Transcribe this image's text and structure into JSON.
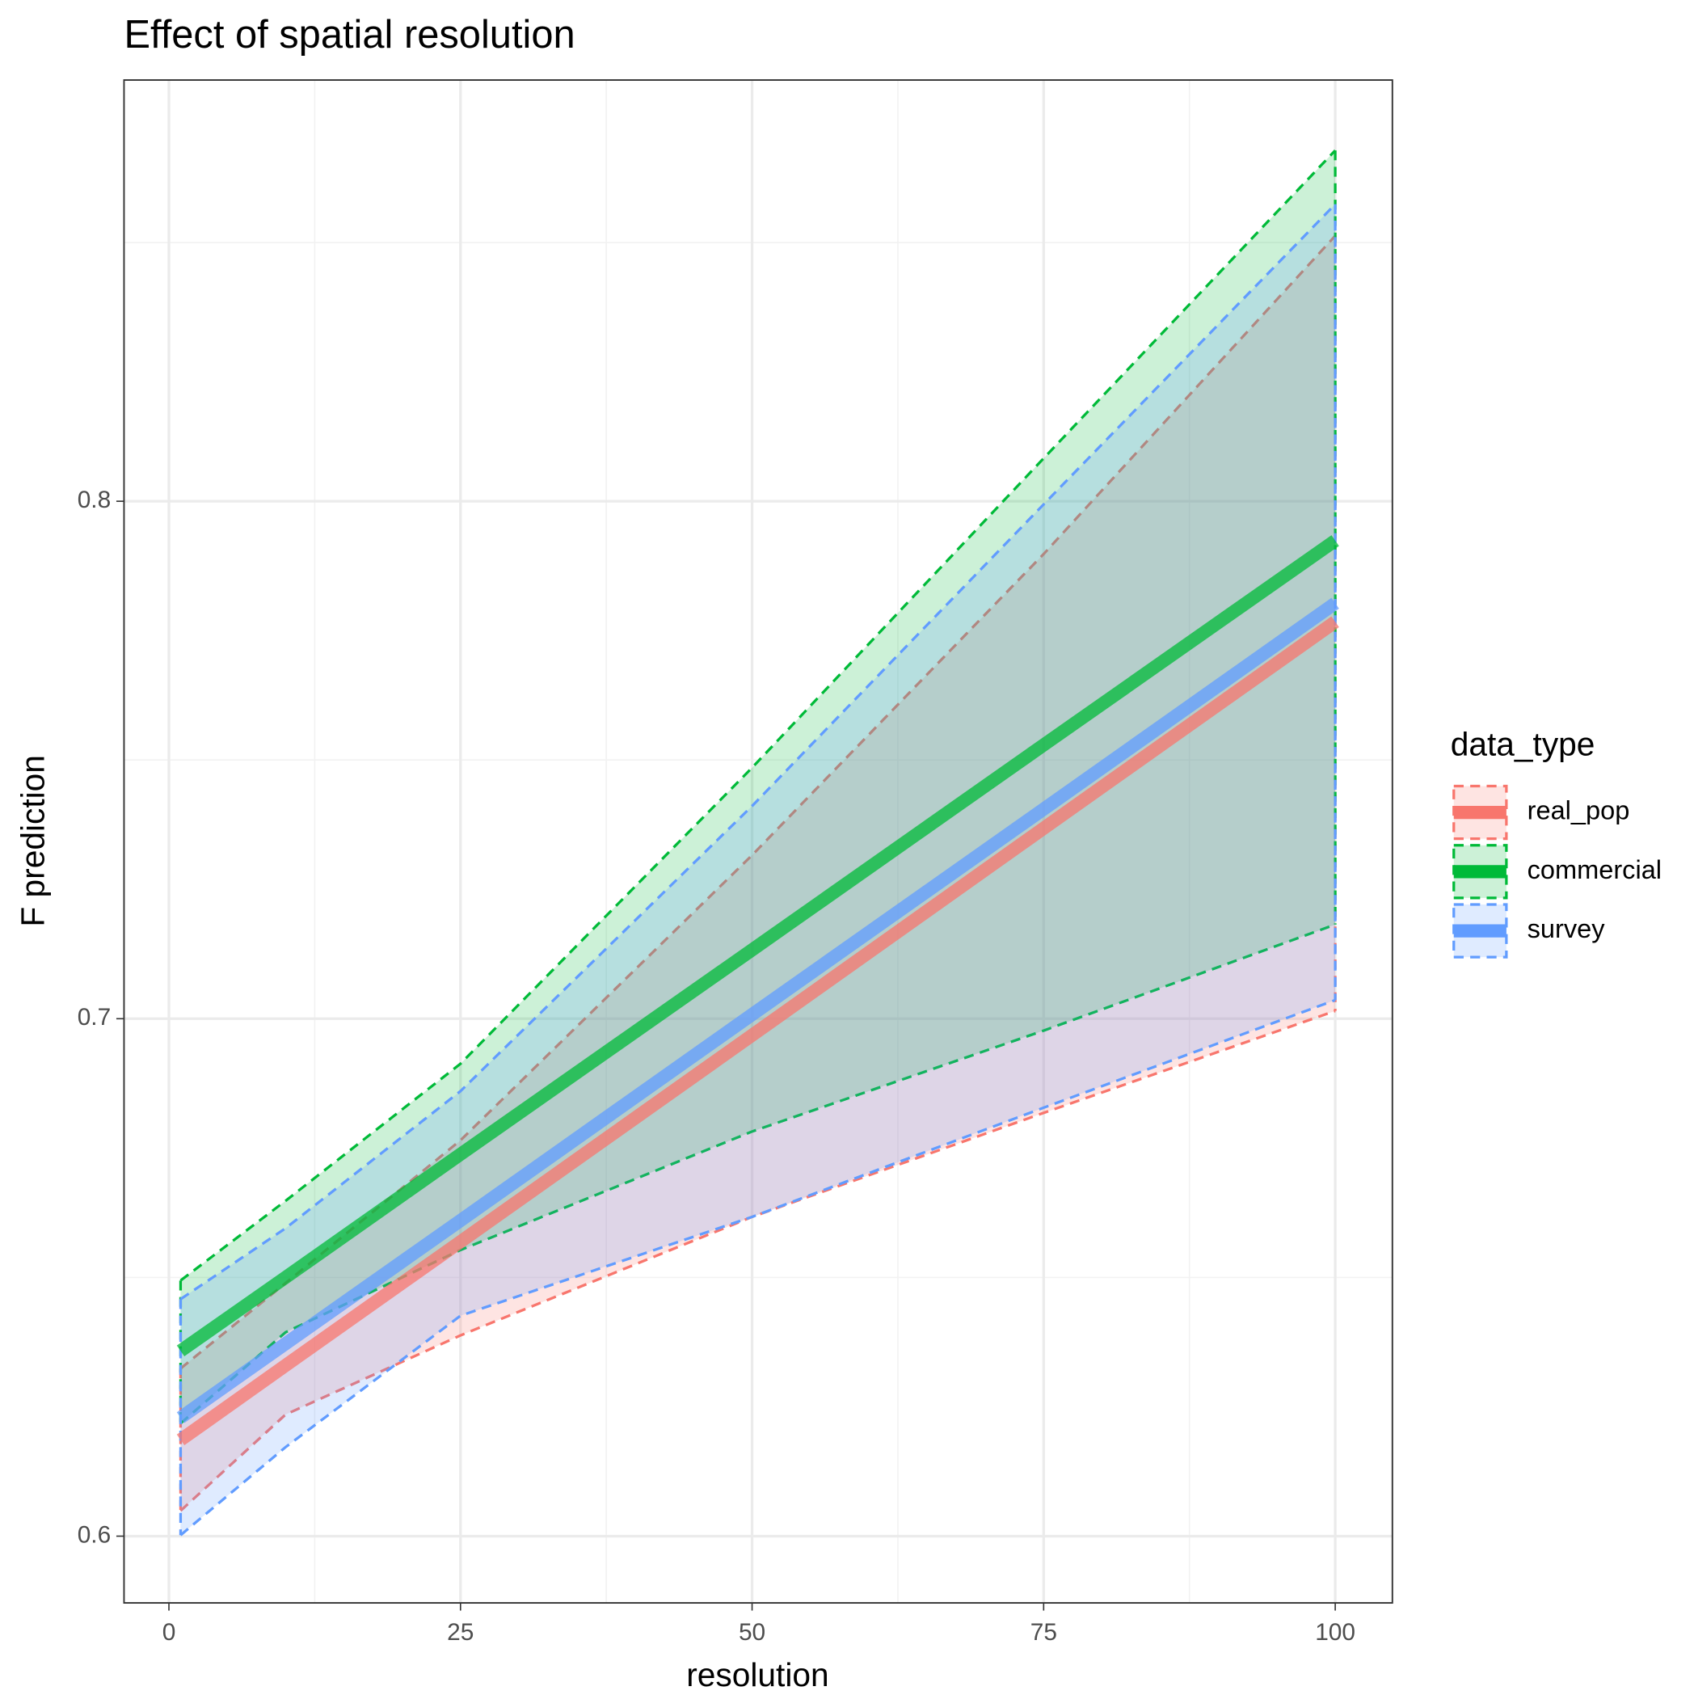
{
  "chart_data": {
    "type": "line",
    "title": "Effect of spatial resolution",
    "x_label": "resolution",
    "y_label": "F prediction",
    "legend_title": "data_type",
    "x": [
      1,
      10,
      25,
      50,
      75,
      100
    ],
    "series": [
      {
        "name": "real_pop",
        "color": "#F8766D",
        "values": [
          0.6186,
          0.633,
          0.6569,
          0.6968,
          0.7368,
          0.7767
        ],
        "lower": [
          0.6049,
          0.6235,
          0.6388,
          0.6617,
          0.6818,
          0.7015
        ],
        "upper": [
          0.6324,
          0.6489,
          0.6765,
          0.7316,
          0.7898,
          0.8513
        ]
      },
      {
        "name": "commercial",
        "color": "#00BA38",
        "values": [
          0.6358,
          0.65,
          0.6738,
          0.7133,
          0.7529,
          0.7924
        ],
        "lower": [
          0.6218,
          0.6394,
          0.6553,
          0.6782,
          0.6977,
          0.7182
        ],
        "upper": [
          0.6494,
          0.6648,
          0.6913,
          0.7485,
          0.8083,
          0.8678
        ]
      },
      {
        "name": "survey",
        "color": "#619CFF",
        "values": [
          0.6229,
          0.6372,
          0.661,
          0.7008,
          0.7405,
          0.7803
        ],
        "lower": [
          0.6002,
          0.6172,
          0.6426,
          0.6617,
          0.6828,
          0.7036
        ],
        "upper": [
          0.6458,
          0.6595,
          0.686,
          0.7411,
          0.7994,
          0.8574
        ]
      }
    ],
    "xlim": [
      -3.85,
      104.9
    ],
    "ylim": [
      0.5871,
      0.8814
    ],
    "xticks": [
      0,
      25,
      50,
      75,
      100
    ],
    "yticks": [
      0.6,
      0.7,
      0.8
    ],
    "grid": true,
    "legend_position": "right"
  }
}
